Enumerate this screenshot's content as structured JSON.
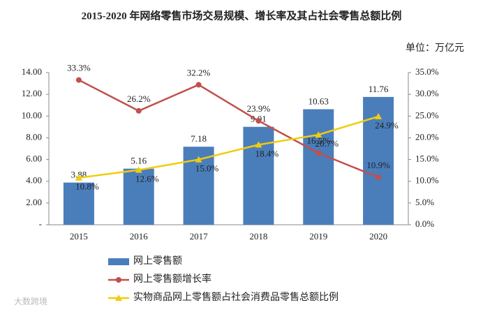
{
  "chart_data": {
    "type": "bar",
    "title": "2015-2020 年网络零售市场交易规模、增长率及其占社会零售总额比例",
    "unit": "单位：万亿元",
    "watermark": "大数跨境",
    "categories": [
      "2015",
      "2016",
      "2017",
      "2018",
      "2019",
      "2020"
    ],
    "series": [
      {
        "name": "网上零售额",
        "type": "bar",
        "axis": "y",
        "color": "#4a7ebb",
        "values": [
          3.88,
          5.16,
          7.18,
          9.01,
          10.63,
          11.76
        ]
      },
      {
        "name": "网上零售额增长率",
        "type": "line",
        "axis": "y2",
        "color": "#c0504d",
        "marker": "circle",
        "values": [
          33.3,
          26.2,
          32.2,
          23.9,
          16.5,
          10.9
        ],
        "value_labels": [
          "33.3%",
          "26.2%",
          "32.2%",
          "23.9%",
          "16.5%",
          "10.9%"
        ]
      },
      {
        "name": "实物商品网上零售额占社会消费品零售总额比例",
        "type": "line",
        "axis": "y2",
        "color": "#f2cc0c",
        "marker": "triangle",
        "values": [
          10.8,
          12.6,
          15.0,
          18.4,
          20.7,
          24.9
        ],
        "value_labels": [
          "10.8%",
          "12.6%",
          "15.0%",
          "18.4%",
          "20.7%",
          "24.9%"
        ]
      }
    ],
    "ylim": [
      0,
      14
    ],
    "yticks": [
      {
        "value": 0,
        "label": "-"
      },
      {
        "value": 2,
        "label": "2.00"
      },
      {
        "value": 4,
        "label": "4.00"
      },
      {
        "value": 6,
        "label": "6.00"
      },
      {
        "value": 8,
        "label": "8.00"
      },
      {
        "value": 10,
        "label": "10.00"
      },
      {
        "value": 12,
        "label": "12.00"
      },
      {
        "value": 14,
        "label": "14.00"
      }
    ],
    "y2lim": [
      0,
      35
    ],
    "y2ticks": [
      {
        "value": 0,
        "label": "0.0%"
      },
      {
        "value": 5,
        "label": "5.0%"
      },
      {
        "value": 10,
        "label": "10.0%"
      },
      {
        "value": 15,
        "label": "15.0%"
      },
      {
        "value": 20,
        "label": "20.0%"
      },
      {
        "value": 25,
        "label": "25.0%"
      },
      {
        "value": 30,
        "label": "30.0%"
      },
      {
        "value": 35,
        "label": "35.0%"
      }
    ],
    "grid": false,
    "legend": "bottom"
  }
}
